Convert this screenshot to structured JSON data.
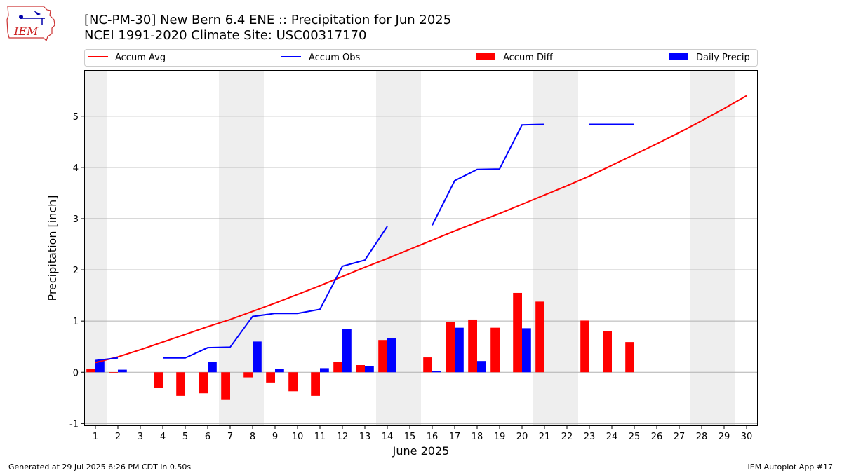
{
  "header": {
    "logo_text": "IEM",
    "title_line1": "[NC-PM-30] New Bern 6.4 ENE :: Precipitation for Jun 2025",
    "title_line2": "NCEI 1991-2020 Climate Site: USC00317170"
  },
  "footer": {
    "generated": "Generated at 29 Jul 2025 6:26 PM CDT in 0.50s",
    "app": "IEM Autoplot App #17"
  },
  "colors": {
    "avg": "#ff0000",
    "obs": "#0000ff",
    "diff": "#ff0000",
    "daily": "#0000ff",
    "weekend_shade": "#eeeeee",
    "grid": "#b0b0b0"
  },
  "chart_data": {
    "type": "bar",
    "xlabel": "June 2025",
    "ylabel": "Precipitation [inch]",
    "xlim": [
      0.5,
      30.5
    ],
    "ylim": [
      -1.05,
      5.9
    ],
    "yticks": [
      -1,
      0,
      1,
      2,
      3,
      4,
      5
    ],
    "grid": "y",
    "legend_placement": "top",
    "days": [
      1,
      2,
      3,
      4,
      5,
      6,
      7,
      8,
      9,
      10,
      11,
      12,
      13,
      14,
      15,
      16,
      17,
      18,
      19,
      20,
      21,
      22,
      23,
      24,
      25,
      26,
      27,
      28,
      29,
      30
    ],
    "weekend_shading": [
      [
        1,
        1
      ],
      [
        7,
        8
      ],
      [
        14,
        15
      ],
      [
        21,
        22
      ],
      [
        28,
        29
      ]
    ],
    "series": [
      {
        "name": "Accum Avg",
        "kind": "line",
        "values": [
          0.19,
          0.3,
          0.44,
          0.59,
          0.74,
          0.89,
          1.03,
          1.19,
          1.35,
          1.52,
          1.69,
          1.87,
          2.05,
          2.22,
          2.4,
          2.58,
          2.76,
          2.93,
          3.1,
          3.28,
          3.46,
          3.64,
          3.83,
          4.04,
          4.25,
          4.46,
          4.68,
          4.91,
          5.15,
          5.4
        ]
      },
      {
        "name": "Accum Obs",
        "kind": "line",
        "values": [
          0.23,
          0.28,
          null,
          0.28,
          0.28,
          0.48,
          0.49,
          1.09,
          1.15,
          1.15,
          1.23,
          2.07,
          2.19,
          2.85,
          null,
          2.87,
          3.74,
          3.96,
          3.97,
          4.83,
          4.84,
          null,
          4.84,
          4.84,
          4.84,
          null,
          null,
          null,
          null,
          null
        ]
      },
      {
        "name": "Accum Diff",
        "kind": "bar",
        "values": [
          0.07,
          -0.02,
          null,
          -0.31,
          -0.46,
          -0.41,
          -0.54,
          -0.1,
          -0.2,
          -0.37,
          -0.46,
          0.2,
          0.14,
          0.63,
          null,
          0.29,
          0.98,
          1.03,
          0.87,
          1.55,
          1.38,
          null,
          1.01,
          0.8,
          0.59,
          null,
          null,
          null,
          null,
          null
        ]
      },
      {
        "name": "Daily Precip",
        "kind": "bar",
        "values": [
          0.23,
          0.05,
          null,
          null,
          null,
          0.2,
          null,
          0.6,
          0.06,
          null,
          0.08,
          0.84,
          0.12,
          0.66,
          null,
          0.02,
          0.87,
          0.22,
          null,
          0.86,
          null,
          null,
          null,
          null,
          null,
          null,
          null,
          null,
          null,
          null
        ]
      }
    ]
  }
}
